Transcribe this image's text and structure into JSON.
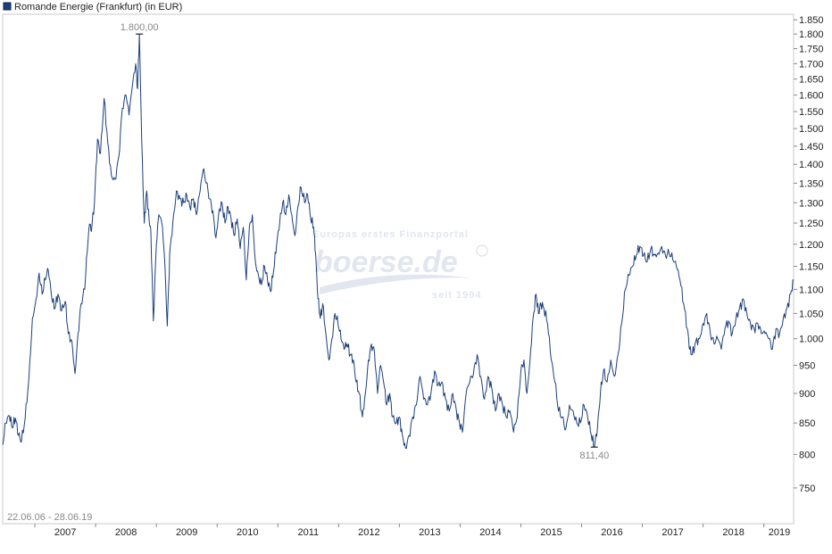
{
  "legend": {
    "label": "Romande Energie (Frankfurt) (in EUR)",
    "color": "#1c3f7a"
  },
  "watermark": {
    "tagline": "Europas erstes Finanzportal",
    "brand": "boerse.de",
    "since": "seit 1994"
  },
  "date_range": "22.06.06 - 28.06.19",
  "chart_data": {
    "type": "line",
    "title": "",
    "xlabel": "",
    "ylabel": "",
    "ylim": [
      700,
      1870
    ],
    "xlim": [
      2006.47,
      2019.49
    ],
    "y_scale": "log",
    "grid": false,
    "legend_position": "top-left",
    "line_color": "#1c3f7a",
    "x_ticks": [
      "2007",
      "2008",
      "2009",
      "2010",
      "2011",
      "2012",
      "2013",
      "2014",
      "2015",
      "2016",
      "2017",
      "2018",
      "2019"
    ],
    "y_ticks": [
      "750",
      "800",
      "850",
      "900",
      "950",
      "1.000",
      "1.050",
      "1.100",
      "1.150",
      "1.200",
      "1.250",
      "1.300",
      "1.350",
      "1.400",
      "1.450",
      "1.500",
      "1.550",
      "1.600",
      "1.650",
      "1.700",
      "1.750",
      "1.800",
      "1.850"
    ],
    "y_tick_values": [
      750,
      800,
      850,
      900,
      950,
      1000,
      1050,
      1100,
      1150,
      1200,
      1250,
      1300,
      1350,
      1400,
      1450,
      1500,
      1550,
      1600,
      1650,
      1700,
      1750,
      1800,
      1850
    ],
    "annotations": [
      {
        "label": "1.800,00",
        "x": 2008.72,
        "y": 1800,
        "position": "above"
      },
      {
        "label": "811,40",
        "x": 2016.21,
        "y": 811.4,
        "position": "below"
      }
    ],
    "series": [
      {
        "values": [
          [
            2006.47,
            815
          ],
          [
            2006.52,
            850
          ],
          [
            2006.58,
            862
          ],
          [
            2006.63,
            842
          ],
          [
            2006.68,
            858
          ],
          [
            2006.73,
            830
          ],
          [
            2006.78,
            820
          ],
          [
            2006.84,
            858
          ],
          [
            2006.9,
            925
          ],
          [
            2006.96,
            1040
          ],
          [
            2007.02,
            1080
          ],
          [
            2007.07,
            1135
          ],
          [
            2007.12,
            1090
          ],
          [
            2007.17,
            1120
          ],
          [
            2007.22,
            1142
          ],
          [
            2007.28,
            1080
          ],
          [
            2007.33,
            1060
          ],
          [
            2007.38,
            1090
          ],
          [
            2007.44,
            1055
          ],
          [
            2007.5,
            1075
          ],
          [
            2007.55,
            1010
          ],
          [
            2007.61,
            995
          ],
          [
            2007.66,
            935
          ],
          [
            2007.71,
            1010
          ],
          [
            2007.76,
            1070
          ],
          [
            2007.82,
            1100
          ],
          [
            2007.86,
            1180
          ],
          [
            2007.9,
            1248
          ],
          [
            2007.93,
            1230
          ],
          [
            2007.98,
            1300
          ],
          [
            2008.03,
            1470
          ],
          [
            2008.08,
            1430
          ],
          [
            2008.14,
            1590
          ],
          [
            2008.2,
            1460
          ],
          [
            2008.26,
            1370
          ],
          [
            2008.32,
            1360
          ],
          [
            2008.38,
            1420
          ],
          [
            2008.44,
            1560
          ],
          [
            2008.5,
            1600
          ],
          [
            2008.55,
            1540
          ],
          [
            2008.6,
            1620
          ],
          [
            2008.66,
            1700
          ],
          [
            2008.69,
            1620
          ],
          [
            2008.72,
            1800
          ],
          [
            2008.76,
            1460
          ],
          [
            2008.8,
            1250
          ],
          [
            2008.84,
            1330
          ],
          [
            2008.88,
            1260
          ],
          [
            2008.91,
            1230
          ],
          [
            2008.95,
            1035
          ],
          [
            2009.0,
            1200
          ],
          [
            2009.04,
            1270
          ],
          [
            2009.09,
            1250
          ],
          [
            2009.13,
            1180
          ],
          [
            2009.18,
            1025
          ],
          [
            2009.22,
            1180
          ],
          [
            2009.27,
            1250
          ],
          [
            2009.33,
            1330
          ],
          [
            2009.39,
            1310
          ],
          [
            2009.45,
            1300
          ],
          [
            2009.5,
            1320
          ],
          [
            2009.55,
            1290
          ],
          [
            2009.61,
            1310
          ],
          [
            2009.66,
            1270
          ],
          [
            2009.72,
            1330
          ],
          [
            2009.77,
            1385
          ],
          [
            2009.82,
            1350
          ],
          [
            2009.88,
            1310
          ],
          [
            2009.93,
            1280
          ],
          [
            2009.98,
            1215
          ],
          [
            2010.03,
            1280
          ],
          [
            2010.08,
            1300
          ],
          [
            2010.13,
            1250
          ],
          [
            2010.18,
            1290
          ],
          [
            2010.23,
            1260
          ],
          [
            2010.28,
            1220
          ],
          [
            2010.33,
            1260
          ],
          [
            2010.38,
            1190
          ],
          [
            2010.43,
            1240
          ],
          [
            2010.48,
            1120
          ],
          [
            2010.53,
            1240
          ],
          [
            2010.58,
            1270
          ],
          [
            2010.63,
            1160
          ],
          [
            2010.68,
            1130
          ],
          [
            2010.73,
            1110
          ],
          [
            2010.78,
            1150
          ],
          [
            2010.83,
            1120
          ],
          [
            2010.88,
            1095
          ],
          [
            2010.93,
            1140
          ],
          [
            2010.98,
            1200
          ],
          [
            2011.03,
            1250
          ],
          [
            2011.08,
            1300
          ],
          [
            2011.13,
            1270
          ],
          [
            2011.18,
            1320
          ],
          [
            2011.23,
            1270
          ],
          [
            2011.28,
            1220
          ],
          [
            2011.33,
            1290
          ],
          [
            2011.38,
            1340
          ],
          [
            2011.44,
            1300
          ],
          [
            2011.49,
            1320
          ],
          [
            2011.54,
            1260
          ],
          [
            2011.59,
            1240
          ],
          [
            2011.62,
            1180
          ],
          [
            2011.66,
            1080
          ],
          [
            2011.7,
            1040
          ],
          [
            2011.74,
            1070
          ],
          [
            2011.79,
            1010
          ],
          [
            2011.84,
            960
          ],
          [
            2011.89,
            1000
          ],
          [
            2011.94,
            1050
          ],
          [
            2011.99,
            1030
          ],
          [
            2012.04,
            1000
          ],
          [
            2012.09,
            980
          ],
          [
            2012.14,
            990
          ],
          [
            2012.19,
            970
          ],
          [
            2012.24,
            960
          ],
          [
            2012.29,
            920
          ],
          [
            2012.34,
            900
          ],
          [
            2012.39,
            860
          ],
          [
            2012.44,
            900
          ],
          [
            2012.49,
            960
          ],
          [
            2012.54,
            990
          ],
          [
            2012.59,
            975
          ],
          [
            2012.64,
            900
          ],
          [
            2012.69,
            950
          ],
          [
            2012.74,
            920
          ],
          [
            2012.79,
            880
          ],
          [
            2012.84,
            900
          ],
          [
            2012.89,
            860
          ],
          [
            2012.95,
            850
          ],
          [
            2013.0,
            860
          ],
          [
            2013.05,
            830
          ],
          [
            2013.1,
            810
          ],
          [
            2013.16,
            830
          ],
          [
            2013.22,
            860
          ],
          [
            2013.28,
            880
          ],
          [
            2013.34,
            930
          ],
          [
            2013.4,
            890
          ],
          [
            2013.46,
            880
          ],
          [
            2013.52,
            900
          ],
          [
            2013.58,
            940
          ],
          [
            2013.64,
            915
          ],
          [
            2013.7,
            920
          ],
          [
            2013.76,
            890
          ],
          [
            2013.82,
            870
          ],
          [
            2013.88,
            900
          ],
          [
            2013.94,
            870
          ],
          [
            2013.99,
            850
          ],
          [
            2014.04,
            835
          ],
          [
            2014.1,
            900
          ],
          [
            2014.16,
            920
          ],
          [
            2014.22,
            935
          ],
          [
            2014.28,
            970
          ],
          [
            2014.34,
            930
          ],
          [
            2014.4,
            890
          ],
          [
            2014.46,
            930
          ],
          [
            2014.52,
            910
          ],
          [
            2014.58,
            870
          ],
          [
            2014.64,
            900
          ],
          [
            2014.7,
            880
          ],
          [
            2014.76,
            860
          ],
          [
            2014.82,
            870
          ],
          [
            2014.88,
            835
          ],
          [
            2014.94,
            860
          ],
          [
            2015.0,
            940
          ],
          [
            2015.05,
            960
          ],
          [
            2015.1,
            900
          ],
          [
            2015.15,
            960
          ],
          [
            2015.2,
            1040
          ],
          [
            2015.25,
            1090
          ],
          [
            2015.29,
            1050
          ],
          [
            2015.33,
            1070
          ],
          [
            2015.38,
            1060
          ],
          [
            2015.44,
            1030
          ],
          [
            2015.5,
            960
          ],
          [
            2015.56,
            920
          ],
          [
            2015.62,
            870
          ],
          [
            2015.68,
            860
          ],
          [
            2015.74,
            840
          ],
          [
            2015.8,
            880
          ],
          [
            2015.86,
            870
          ],
          [
            2015.92,
            850
          ],
          [
            2015.98,
            850
          ],
          [
            2016.04,
            880
          ],
          [
            2016.1,
            860
          ],
          [
            2016.16,
            830
          ],
          [
            2016.21,
            811.4
          ],
          [
            2016.26,
            840
          ],
          [
            2016.31,
            900
          ],
          [
            2016.36,
            940
          ],
          [
            2016.42,
            920
          ],
          [
            2016.48,
            960
          ],
          [
            2016.54,
            930
          ],
          [
            2016.6,
            970
          ],
          [
            2016.66,
            1030
          ],
          [
            2016.72,
            1100
          ],
          [
            2016.78,
            1130
          ],
          [
            2016.84,
            1150
          ],
          [
            2016.9,
            1175
          ],
          [
            2016.96,
            1195
          ],
          [
            2017.02,
            1175
          ],
          [
            2017.08,
            1160
          ],
          [
            2017.14,
            1190
          ],
          [
            2017.2,
            1175
          ],
          [
            2017.26,
            1180
          ],
          [
            2017.32,
            1195
          ],
          [
            2017.38,
            1175
          ],
          [
            2017.44,
            1180
          ],
          [
            2017.5,
            1165
          ],
          [
            2017.56,
            1150
          ],
          [
            2017.62,
            1120
          ],
          [
            2017.68,
            1070
          ],
          [
            2017.74,
            1020
          ],
          [
            2017.78,
            980
          ],
          [
            2017.82,
            970
          ],
          [
            2017.88,
            995
          ],
          [
            2017.94,
            1000
          ],
          [
            2018.0,
            1030
          ],
          [
            2018.06,
            1050
          ],
          [
            2018.12,
            1010
          ],
          [
            2018.18,
            990
          ],
          [
            2018.24,
            1000
          ],
          [
            2018.3,
            980
          ],
          [
            2018.36,
            1020
          ],
          [
            2018.42,
            1035
          ],
          [
            2018.48,
            1010
          ],
          [
            2018.54,
            1040
          ],
          [
            2018.6,
            1060
          ],
          [
            2018.66,
            1080
          ],
          [
            2018.72,
            1050
          ],
          [
            2018.78,
            1030
          ],
          [
            2018.84,
            1020
          ],
          [
            2018.9,
            1030
          ],
          [
            2018.96,
            1010
          ],
          [
            2019.02,
            1010
          ],
          [
            2019.08,
            1000
          ],
          [
            2019.14,
            980
          ],
          [
            2019.2,
            1020
          ],
          [
            2019.26,
            1010
          ],
          [
            2019.32,
            1040
          ],
          [
            2019.38,
            1060
          ],
          [
            2019.44,
            1090
          ],
          [
            2019.49,
            1120
          ]
        ]
      }
    ]
  }
}
